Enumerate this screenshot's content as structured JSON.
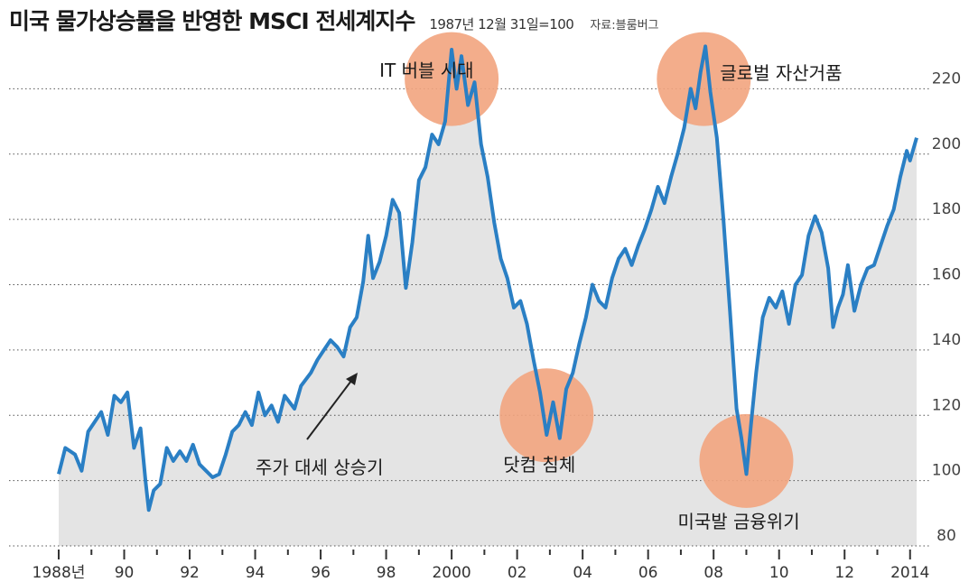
{
  "chart_data": {
    "type": "area",
    "title": "미국 물가상승률을 반영한 MSCI 전세계지수",
    "subtitle": "1987년 12월 31일=100",
    "source": "자료:블룸버그",
    "x_range": [
      1988,
      2014.2
    ],
    "ylim": [
      80,
      232
    ],
    "yticks": [
      80,
      100,
      120,
      140,
      160,
      180,
      200,
      220
    ],
    "xticks": [
      {
        "x": 1988,
        "label": "1988년"
      },
      {
        "x": 1990,
        "label": "90"
      },
      {
        "x": 1992,
        "label": "92"
      },
      {
        "x": 1994,
        "label": "94"
      },
      {
        "x": 1996,
        "label": "96"
      },
      {
        "x": 1998,
        "label": "98"
      },
      {
        "x": 2000,
        "label": "2000"
      },
      {
        "x": 2002,
        "label": "02"
      },
      {
        "x": 2004,
        "label": "04"
      },
      {
        "x": 2006,
        "label": "06"
      },
      {
        "x": 2008,
        "label": "08"
      },
      {
        "x": 2010,
        "label": "10"
      },
      {
        "x": 2012,
        "label": "12"
      },
      {
        "x": 2014,
        "label": "2014"
      }
    ],
    "grid": "horizontal dotted",
    "line_color": "#2a7fc4",
    "fill_color": "#e4e4e4",
    "series": [
      {
        "points": [
          [
            1988.0,
            102
          ],
          [
            1988.2,
            110
          ],
          [
            1988.5,
            108
          ],
          [
            1988.7,
            103
          ],
          [
            1988.9,
            115
          ],
          [
            1989.1,
            118
          ],
          [
            1989.3,
            121
          ],
          [
            1989.5,
            114
          ],
          [
            1989.7,
            126
          ],
          [
            1989.9,
            124
          ],
          [
            1990.1,
            127
          ],
          [
            1990.3,
            110
          ],
          [
            1990.5,
            116
          ],
          [
            1990.65,
            100
          ],
          [
            1990.75,
            91
          ],
          [
            1990.9,
            97
          ],
          [
            1991.1,
            99
          ],
          [
            1991.3,
            110
          ],
          [
            1991.5,
            106
          ],
          [
            1991.7,
            109
          ],
          [
            1991.9,
            106
          ],
          [
            1992.1,
            111
          ],
          [
            1992.3,
            105
          ],
          [
            1992.5,
            103
          ],
          [
            1992.7,
            101
          ],
          [
            1992.9,
            102
          ],
          [
            1993.1,
            108
          ],
          [
            1993.3,
            115
          ],
          [
            1993.5,
            117
          ],
          [
            1993.7,
            121
          ],
          [
            1993.9,
            117
          ],
          [
            1994.1,
            127
          ],
          [
            1994.3,
            120
          ],
          [
            1994.5,
            123
          ],
          [
            1994.7,
            118
          ],
          [
            1994.9,
            126
          ],
          [
            1995.2,
            122
          ],
          [
            1995.4,
            129
          ],
          [
            1995.7,
            133
          ],
          [
            1995.9,
            137
          ],
          [
            1996.1,
            140
          ],
          [
            1996.3,
            143
          ],
          [
            1996.5,
            141
          ],
          [
            1996.7,
            138
          ],
          [
            1996.9,
            147
          ],
          [
            1997.1,
            150
          ],
          [
            1997.3,
            161
          ],
          [
            1997.45,
            175
          ],
          [
            1997.6,
            162
          ],
          [
            1997.8,
            167
          ],
          [
            1998.0,
            175
          ],
          [
            1998.2,
            186
          ],
          [
            1998.4,
            182
          ],
          [
            1998.6,
            159
          ],
          [
            1998.8,
            173
          ],
          [
            1999.0,
            192
          ],
          [
            1999.2,
            196
          ],
          [
            1999.4,
            206
          ],
          [
            1999.6,
            203
          ],
          [
            1999.8,
            210
          ],
          [
            2000.0,
            232
          ],
          [
            2000.15,
            220
          ],
          [
            2000.3,
            230
          ],
          [
            2000.5,
            215
          ],
          [
            2000.7,
            222
          ],
          [
            2000.9,
            203
          ],
          [
            2001.1,
            193
          ],
          [
            2001.3,
            179
          ],
          [
            2001.5,
            168
          ],
          [
            2001.7,
            162
          ],
          [
            2001.9,
            153
          ],
          [
            2002.1,
            155
          ],
          [
            2002.3,
            148
          ],
          [
            2002.5,
            137
          ],
          [
            2002.7,
            127
          ],
          [
            2002.9,
            114
          ],
          [
            2003.1,
            124
          ],
          [
            2003.3,
            113
          ],
          [
            2003.5,
            128
          ],
          [
            2003.7,
            133
          ],
          [
            2003.9,
            142
          ],
          [
            2004.1,
            150
          ],
          [
            2004.3,
            160
          ],
          [
            2004.5,
            155
          ],
          [
            2004.7,
            153
          ],
          [
            2004.9,
            162
          ],
          [
            2005.1,
            168
          ],
          [
            2005.3,
            171
          ],
          [
            2005.5,
            166
          ],
          [
            2005.7,
            172
          ],
          [
            2005.9,
            177
          ],
          [
            2006.1,
            183
          ],
          [
            2006.3,
            190
          ],
          [
            2006.5,
            185
          ],
          [
            2006.7,
            193
          ],
          [
            2006.9,
            200
          ],
          [
            2007.1,
            208
          ],
          [
            2007.3,
            220
          ],
          [
            2007.45,
            214
          ],
          [
            2007.6,
            225
          ],
          [
            2007.75,
            233
          ],
          [
            2007.9,
            219
          ],
          [
            2008.1,
            205
          ],
          [
            2008.3,
            180
          ],
          [
            2008.5,
            152
          ],
          [
            2008.7,
            122
          ],
          [
            2008.85,
            113
          ],
          [
            2009.0,
            102
          ],
          [
            2009.15,
            118
          ],
          [
            2009.3,
            133
          ],
          [
            2009.5,
            150
          ],
          [
            2009.7,
            156
          ],
          [
            2009.9,
            153
          ],
          [
            2010.1,
            158
          ],
          [
            2010.3,
            148
          ],
          [
            2010.5,
            160
          ],
          [
            2010.7,
            163
          ],
          [
            2010.9,
            175
          ],
          [
            2011.1,
            181
          ],
          [
            2011.3,
            176
          ],
          [
            2011.5,
            165
          ],
          [
            2011.65,
            147
          ],
          [
            2011.8,
            153
          ],
          [
            2011.95,
            157
          ],
          [
            2012.1,
            166
          ],
          [
            2012.3,
            152
          ],
          [
            2012.5,
            160
          ],
          [
            2012.7,
            165
          ],
          [
            2012.9,
            166
          ],
          [
            2013.1,
            172
          ],
          [
            2013.3,
            178
          ],
          [
            2013.5,
            183
          ],
          [
            2013.7,
            193
          ],
          [
            2013.9,
            201
          ],
          [
            2014.0,
            198
          ],
          [
            2014.2,
            205
          ]
        ]
      }
    ],
    "annotations": [
      {
        "text": "IT 버블 시대",
        "x": 2000.0,
        "y": 223
      },
      {
        "text": "글로벌 자산거품",
        "x": 2007.7,
        "y": 223
      },
      {
        "text": "닷컴 침체",
        "x": 2002.9,
        "y": 120
      },
      {
        "text": "미국발 금융위기",
        "x": 2009.0,
        "y": 106
      },
      {
        "text": "주가 대세 상승기",
        "x": 1994.8,
        "y": 107
      }
    ],
    "highlight_color": "#f2a47e"
  }
}
